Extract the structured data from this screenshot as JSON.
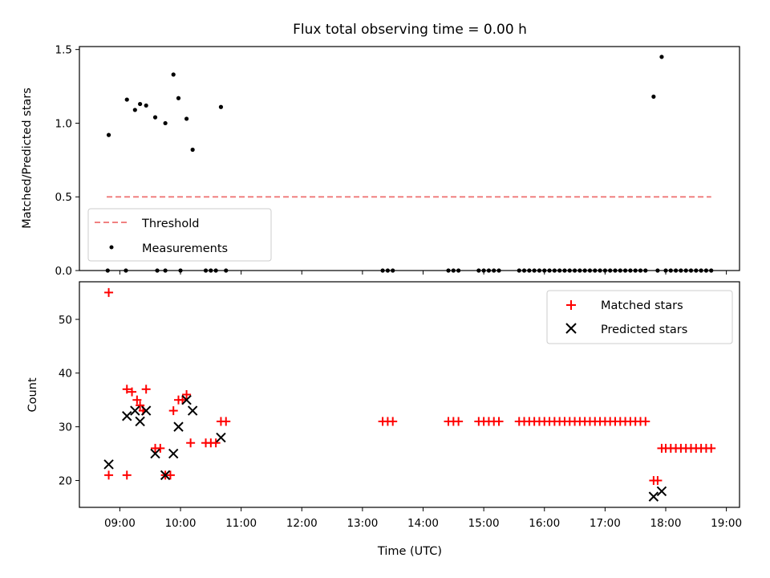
{
  "chart_data": [
    {
      "type": "scatter",
      "title": "Flux total observing time = 0.00 h",
      "xlabel": "",
      "ylabel": "Matched/Predicted stars",
      "ylim": [
        0,
        1.52
      ],
      "yticks": [
        "0.0",
        "0.5",
        "1.0",
        "1.5"
      ],
      "legend_placement": "lower-left",
      "colors": {
        "threshold": "#f08080",
        "measurements": "#000000"
      },
      "threshold": {
        "name": "Threshold",
        "x": [
          "08:47",
          "18:45"
        ],
        "y": [
          0.5,
          0.5
        ]
      },
      "measurements": {
        "name": "Measurements",
        "points": [
          {
            "x": "08:49",
            "y": 0.92
          },
          {
            "x": "09:07",
            "y": 1.16
          },
          {
            "x": "09:15",
            "y": 1.09
          },
          {
            "x": "09:20",
            "y": 1.13
          },
          {
            "x": "09:26",
            "y": 1.12
          },
          {
            "x": "09:35",
            "y": 1.04
          },
          {
            "x": "09:45",
            "y": 1.0
          },
          {
            "x": "09:53",
            "y": 1.33
          },
          {
            "x": "09:58",
            "y": 1.17
          },
          {
            "x": "10:06",
            "y": 1.03
          },
          {
            "x": "10:12",
            "y": 0.82
          },
          {
            "x": "10:40",
            "y": 1.11
          },
          {
            "x": "17:48",
            "y": 1.18
          },
          {
            "x": "17:56",
            "y": 1.45
          }
        ]
      },
      "zero_points_x": [
        "08:48",
        "09:06",
        "09:37",
        "09:45",
        "10:00",
        "10:25",
        "10:30",
        "10:35",
        "10:45",
        "13:20",
        "13:25",
        "13:30",
        "14:25",
        "14:30",
        "14:35",
        "14:55",
        "15:00",
        "15:05",
        "15:10",
        "15:15",
        "15:35",
        "15:40",
        "15:45",
        "15:50",
        "15:55",
        "16:00",
        "16:05",
        "16:10",
        "16:15",
        "16:20",
        "16:25",
        "16:30",
        "16:35",
        "16:40",
        "16:45",
        "16:50",
        "16:55",
        "17:00",
        "17:05",
        "17:10",
        "17:15",
        "17:20",
        "17:25",
        "17:30",
        "17:35",
        "17:40",
        "17:52",
        "18:00",
        "18:05",
        "18:10",
        "18:15",
        "18:20",
        "18:25",
        "18:30",
        "18:35",
        "18:40",
        "18:45"
      ]
    },
    {
      "type": "scatter",
      "title": "",
      "xlabel": "Time (UTC)",
      "ylabel": "Count",
      "xlim": [
        "08:20",
        "19:13"
      ],
      "ylim": [
        15,
        57
      ],
      "yticks": [
        "20",
        "30",
        "40",
        "50"
      ],
      "xticks": [
        "09:00",
        "10:00",
        "11:00",
        "12:00",
        "13:00",
        "14:00",
        "15:00",
        "16:00",
        "17:00",
        "18:00",
        "19:00"
      ],
      "legend_placement": "upper-right",
      "colors": {
        "matched": "#ff0000",
        "predicted": "#000000"
      },
      "series": [
        {
          "name": "Matched stars",
          "marker": "plus",
          "points": [
            {
              "x": "08:49",
              "y": 55
            },
            {
              "x": "08:49",
              "y": 21
            },
            {
              "x": "09:07",
              "y": 21
            },
            {
              "x": "09:07",
              "y": 37
            },
            {
              "x": "09:12",
              "y": 36.5
            },
            {
              "x": "09:17",
              "y": 35
            },
            {
              "x": "09:20",
              "y": 34
            },
            {
              "x": "09:23",
              "y": 33
            },
            {
              "x": "09:26",
              "y": 37
            },
            {
              "x": "09:35",
              "y": 26
            },
            {
              "x": "09:40",
              "y": 26
            },
            {
              "x": "09:45",
              "y": 21
            },
            {
              "x": "09:50",
              "y": 21
            },
            {
              "x": "09:53",
              "y": 33
            },
            {
              "x": "09:58",
              "y": 35
            },
            {
              "x": "10:02",
              "y": 35
            },
            {
              "x": "10:06",
              "y": 36
            },
            {
              "x": "10:10",
              "y": 27
            },
            {
              "x": "10:25",
              "y": 27
            },
            {
              "x": "10:30",
              "y": 27
            },
            {
              "x": "10:35",
              "y": 27
            },
            {
              "x": "10:40",
              "y": 31
            },
            {
              "x": "10:45",
              "y": 31
            },
            {
              "x": "13:20",
              "y": 31
            },
            {
              "x": "13:25",
              "y": 31
            },
            {
              "x": "13:30",
              "y": 31
            },
            {
              "x": "14:25",
              "y": 31
            },
            {
              "x": "14:30",
              "y": 31
            },
            {
              "x": "14:35",
              "y": 31
            },
            {
              "x": "14:55",
              "y": 31
            },
            {
              "x": "15:00",
              "y": 31
            },
            {
              "x": "15:05",
              "y": 31
            },
            {
              "x": "15:10",
              "y": 31
            },
            {
              "x": "15:15",
              "y": 31
            },
            {
              "x": "15:35",
              "y": 31
            },
            {
              "x": "15:40",
              "y": 31
            },
            {
              "x": "15:45",
              "y": 31
            },
            {
              "x": "15:50",
              "y": 31
            },
            {
              "x": "15:55",
              "y": 31
            },
            {
              "x": "16:00",
              "y": 31
            },
            {
              "x": "16:05",
              "y": 31
            },
            {
              "x": "16:10",
              "y": 31
            },
            {
              "x": "16:15",
              "y": 31
            },
            {
              "x": "16:20",
              "y": 31
            },
            {
              "x": "16:25",
              "y": 31
            },
            {
              "x": "16:30",
              "y": 31
            },
            {
              "x": "16:35",
              "y": 31
            },
            {
              "x": "16:40",
              "y": 31
            },
            {
              "x": "16:45",
              "y": 31
            },
            {
              "x": "16:50",
              "y": 31
            },
            {
              "x": "16:55",
              "y": 31
            },
            {
              "x": "17:00",
              "y": 31
            },
            {
              "x": "17:05",
              "y": 31
            },
            {
              "x": "17:10",
              "y": 31
            },
            {
              "x": "17:15",
              "y": 31
            },
            {
              "x": "17:20",
              "y": 31
            },
            {
              "x": "17:25",
              "y": 31
            },
            {
              "x": "17:30",
              "y": 31
            },
            {
              "x": "17:35",
              "y": 31
            },
            {
              "x": "17:40",
              "y": 31
            },
            {
              "x": "17:48",
              "y": 20
            },
            {
              "x": "17:52",
              "y": 20
            },
            {
              "x": "17:56",
              "y": 26
            },
            {
              "x": "18:00",
              "y": 26
            },
            {
              "x": "18:05",
              "y": 26
            },
            {
              "x": "18:10",
              "y": 26
            },
            {
              "x": "18:15",
              "y": 26
            },
            {
              "x": "18:20",
              "y": 26
            },
            {
              "x": "18:25",
              "y": 26
            },
            {
              "x": "18:30",
              "y": 26
            },
            {
              "x": "18:35",
              "y": 26
            },
            {
              "x": "18:40",
              "y": 26
            },
            {
              "x": "18:45",
              "y": 26
            }
          ]
        },
        {
          "name": "Predicted stars",
          "marker": "x",
          "points": [
            {
              "x": "08:49",
              "y": 23
            },
            {
              "x": "09:07",
              "y": 32
            },
            {
              "x": "09:15",
              "y": 33
            },
            {
              "x": "09:20",
              "y": 31
            },
            {
              "x": "09:26",
              "y": 33
            },
            {
              "x": "09:35",
              "y": 25
            },
            {
              "x": "09:45",
              "y": 21
            },
            {
              "x": "09:53",
              "y": 25
            },
            {
              "x": "09:58",
              "y": 30
            },
            {
              "x": "10:06",
              "y": 35
            },
            {
              "x": "10:12",
              "y": 33
            },
            {
              "x": "10:40",
              "y": 28
            },
            {
              "x": "17:48",
              "y": 17
            },
            {
              "x": "17:56",
              "y": 18
            }
          ]
        }
      ]
    }
  ]
}
